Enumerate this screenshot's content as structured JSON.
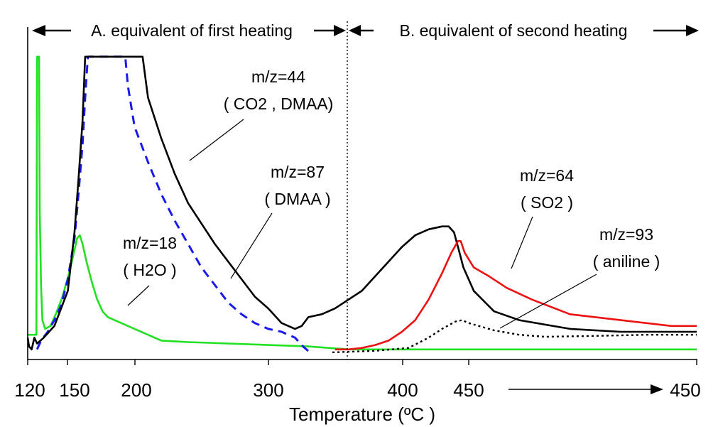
{
  "chart_data": {
    "type": "line",
    "title": "",
    "xlabel": "Temperature (ºC )",
    "ylabel": "",
    "x_tick_labels": [
      "120",
      "150",
      "200",
      "300",
      "400",
      "450",
      "450"
    ],
    "grid": false,
    "legend": "none",
    "regions": [
      {
        "label": "A. equivalent of first heating"
      },
      {
        "label": "B. equivalent of second heating"
      }
    ],
    "series": [
      {
        "name": "m/z=44",
        "species": "( CO2 , DMAA)",
        "color": "#000000",
        "style": "solid",
        "points": [
          [
            120,
            0.06
          ],
          [
            121,
            0.03
          ],
          [
            123,
            0.02
          ],
          [
            125,
            0.06
          ],
          [
            127,
            0.04
          ],
          [
            132,
            0.06
          ],
          [
            140,
            0.1
          ],
          [
            150,
            0.22
          ],
          [
            155,
            0.42
          ],
          [
            158,
            0.6
          ],
          [
            161,
            0.8
          ],
          [
            163,
            1.02
          ],
          [
            206,
            1.02
          ],
          [
            210,
            0.88
          ],
          [
            220,
            0.74
          ],
          [
            230,
            0.62
          ],
          [
            240,
            0.52
          ],
          [
            250,
            0.45
          ],
          [
            260,
            0.38
          ],
          [
            270,
            0.32
          ],
          [
            280,
            0.26
          ],
          [
            290,
            0.2
          ],
          [
            300,
            0.16
          ],
          [
            310,
            0.11
          ],
          [
            320,
            0.09
          ],
          [
            325,
            0.1
          ],
          [
            330,
            0.13
          ],
          [
            340,
            0.14
          ],
          [
            350,
            0.16
          ],
          [
            360,
            0.19
          ],
          [
            370,
            0.22
          ],
          [
            380,
            0.27
          ],
          [
            390,
            0.32
          ],
          [
            400,
            0.37
          ],
          [
            410,
            0.41
          ],
          [
            420,
            0.43
          ],
          [
            430,
            0.44
          ],
          [
            435,
            0.44
          ],
          [
            439,
            0.42
          ],
          [
            442,
            0.37
          ],
          [
            446,
            0.3
          ],
          [
            452,
            0.22
          ],
          [
            460,
            0.15
          ],
          [
            470,
            0.12
          ],
          [
            490,
            0.09
          ],
          [
            510,
            0.08
          ],
          [
            540,
            0.08
          ]
        ]
      },
      {
        "name": "m/z=87",
        "species": "( DMAA )",
        "color": "#1a1aee",
        "style": "dashed",
        "points": [
          [
            127,
            0.02
          ],
          [
            130,
            0.05
          ],
          [
            135,
            0.08
          ],
          [
            140,
            0.12
          ],
          [
            145,
            0.17
          ],
          [
            150,
            0.26
          ],
          [
            155,
            0.4
          ],
          [
            158,
            0.55
          ],
          [
            161,
            0.72
          ],
          [
            163,
            0.88
          ],
          [
            165,
            1.02
          ],
          [
            193,
            1.02
          ],
          [
            195,
            0.92
          ],
          [
            200,
            0.78
          ],
          [
            210,
            0.66
          ],
          [
            220,
            0.55
          ],
          [
            230,
            0.46
          ],
          [
            240,
            0.38
          ],
          [
            250,
            0.3
          ],
          [
            260,
            0.24
          ],
          [
            270,
            0.18
          ],
          [
            280,
            0.14
          ],
          [
            290,
            0.11
          ],
          [
            300,
            0.09
          ],
          [
            310,
            0.08
          ],
          [
            320,
            0.06
          ],
          [
            326,
            0.03
          ],
          [
            331,
            0.01
          ]
        ]
      },
      {
        "name": "m/z=18",
        "species": "( H2O )",
        "color": "#22e022",
        "style": "solid",
        "points": [
          [
            120,
            0.07
          ],
          [
            125,
            0.07
          ],
          [
            126.5,
            0.07
          ],
          [
            127,
            1.02
          ],
          [
            128.5,
            1.02
          ],
          [
            129,
            0.5
          ],
          [
            130,
            0.24
          ],
          [
            131,
            0.12
          ],
          [
            133,
            0.09
          ],
          [
            137,
            0.1
          ],
          [
            141,
            0.14
          ],
          [
            146,
            0.2
          ],
          [
            151,
            0.28
          ],
          [
            155,
            0.36
          ],
          [
            157,
            0.4
          ],
          [
            159,
            0.41
          ],
          [
            161,
            0.38
          ],
          [
            164,
            0.32
          ],
          [
            168,
            0.25
          ],
          [
            172,
            0.19
          ],
          [
            176,
            0.15
          ],
          [
            180,
            0.13
          ],
          [
            190,
            0.11
          ],
          [
            200,
            0.09
          ],
          [
            210,
            0.07
          ],
          [
            220,
            0.05
          ],
          [
            240,
            0.045
          ],
          [
            270,
            0.04
          ],
          [
            300,
            0.035
          ],
          [
            330,
            0.03
          ],
          [
            360,
            0.02
          ],
          [
            400,
            0.02
          ],
          [
            450,
            0.02
          ],
          [
            500,
            0.02
          ],
          [
            540,
            0.02
          ]
        ]
      },
      {
        "name": "m/z=64",
        "species": "( SO2 )",
        "color": "#ee1111",
        "style": "solid",
        "points": [
          [
            350,
            0.02
          ],
          [
            360,
            0.02
          ],
          [
            370,
            0.025
          ],
          [
            380,
            0.035
          ],
          [
            390,
            0.05
          ],
          [
            400,
            0.08
          ],
          [
            410,
            0.12
          ],
          [
            420,
            0.19
          ],
          [
            430,
            0.28
          ],
          [
            437,
            0.35
          ],
          [
            442,
            0.39
          ],
          [
            444,
            0.39
          ],
          [
            447,
            0.35
          ],
          [
            452,
            0.3
          ],
          [
            458,
            0.27
          ],
          [
            465,
            0.23
          ],
          [
            475,
            0.19
          ],
          [
            490,
            0.14
          ],
          [
            510,
            0.12
          ],
          [
            530,
            0.1
          ],
          [
            540,
            0.1
          ]
        ]
      },
      {
        "name": "m/z=93",
        "species": "( aniline )",
        "color": "#000000",
        "style": "dotted",
        "points": [
          [
            348,
            0.01
          ],
          [
            380,
            0.015
          ],
          [
            405,
            0.025
          ],
          [
            420,
            0.06
          ],
          [
            430,
            0.09
          ],
          [
            440,
            0.115
          ],
          [
            445,
            0.12
          ],
          [
            450,
            0.11
          ],
          [
            460,
            0.085
          ],
          [
            470,
            0.07
          ],
          [
            480,
            0.063
          ],
          [
            500,
            0.066
          ],
          [
            520,
            0.07
          ],
          [
            540,
            0.07
          ]
        ]
      }
    ]
  }
}
